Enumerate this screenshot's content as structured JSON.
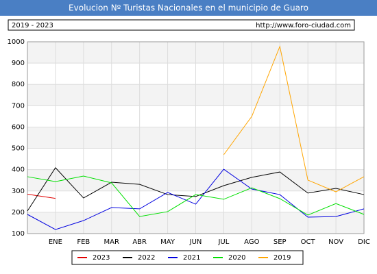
{
  "chart_data": {
    "type": "line",
    "title": "Evolucion Nº Turistas Nacionales en el municipio de Guaro",
    "subtitle": "2019 - 2023",
    "source": "http://www.foro-ciudad.com",
    "categories": [
      null,
      "ENE",
      "FEB",
      "MAR",
      "ABR",
      "MAY",
      "JUN",
      "JUL",
      "AGO",
      "SEP",
      "OCT",
      "NOV",
      "DIC"
    ],
    "series": [
      {
        "name": "2023",
        "color": "#e00000",
        "values": [
          285,
          265,
          null,
          null,
          null,
          null,
          null,
          null,
          null,
          null,
          null,
          null,
          null
        ]
      },
      {
        "name": "2022",
        "color": "#000000",
        "values": [
          206,
          409,
          267,
          341,
          331,
          283,
          274,
          325,
          364,
          389,
          290,
          312,
          283
        ]
      },
      {
        "name": "2021",
        "color": "#0000e0",
        "values": [
          190,
          119,
          161,
          222,
          216,
          293,
          238,
          402,
          309,
          283,
          177,
          180,
          216
        ]
      },
      {
        "name": "2020",
        "color": "#00e000",
        "values": [
          367,
          344,
          370,
          338,
          180,
          203,
          283,
          261,
          315,
          264,
          187,
          241,
          190
        ]
      },
      {
        "name": "2019",
        "color": "#ffa500",
        "values": [
          null,
          null,
          null,
          null,
          null,
          null,
          null,
          470,
          650,
          978,
          351,
          296,
          367
        ]
      }
    ],
    "ylim": [
      100,
      1000
    ],
    "yticks": [
      100,
      200,
      300,
      400,
      500,
      600,
      700,
      800,
      900,
      1000
    ],
    "grid": true
  }
}
